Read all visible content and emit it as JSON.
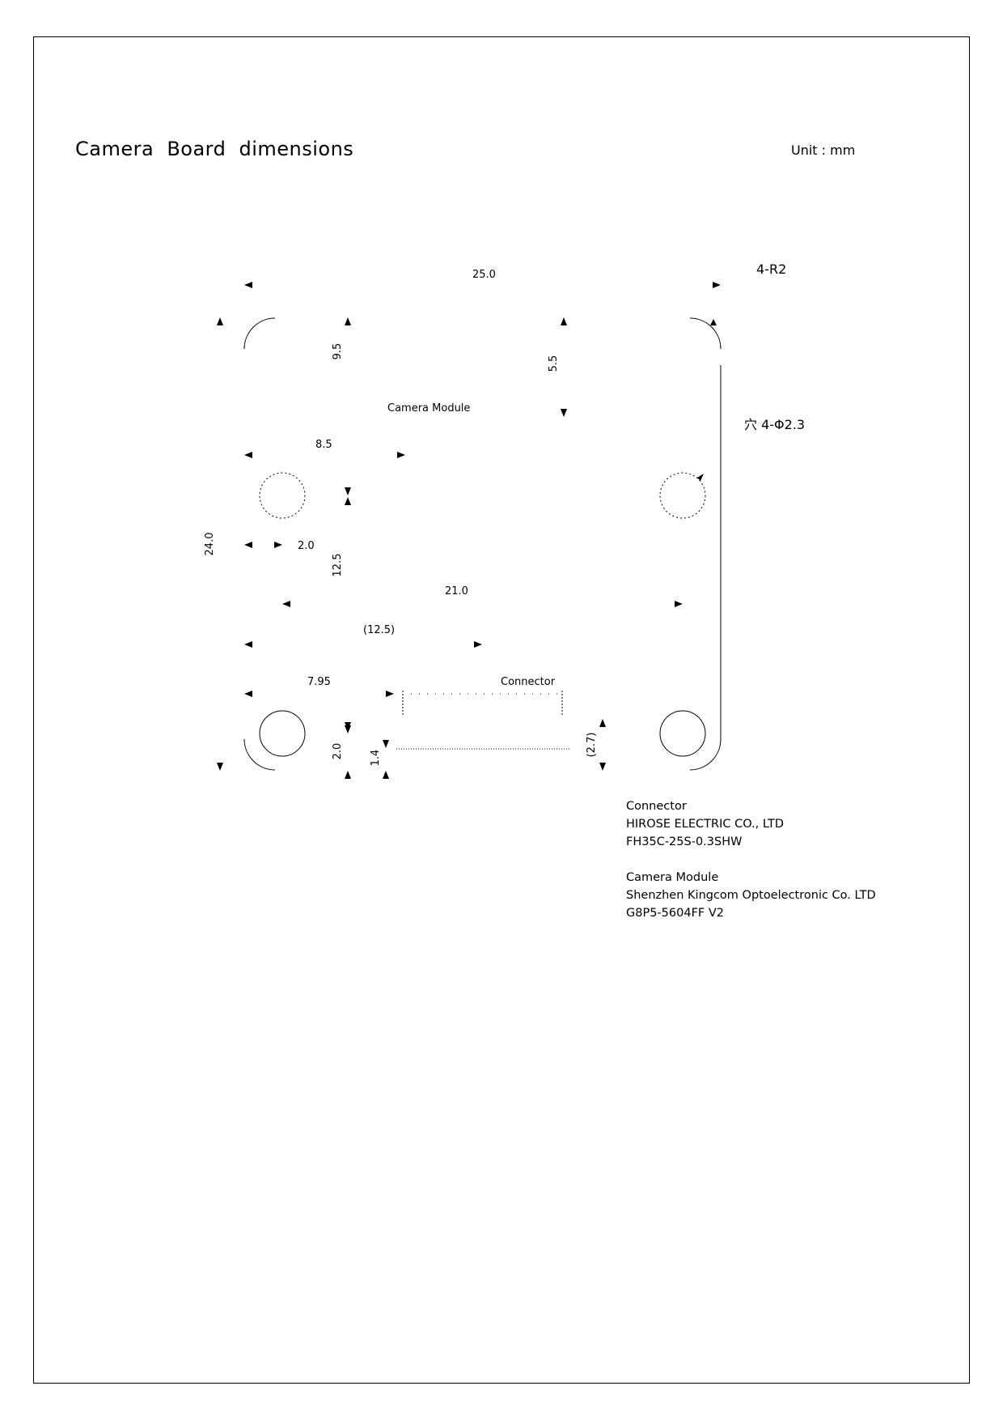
{
  "title": "Camera  Board  dimensions",
  "unit": "Unit : mm",
  "callouts": {
    "corner_radius": "4-R2",
    "holes": "穴  4-Φ2.3"
  },
  "labels": {
    "camera_module": "Camera Module",
    "connector": "Connector"
  },
  "dimensions": {
    "board_width": "25.0",
    "board_height": "24.0",
    "top_to_module": "9.5",
    "module_height": "5.5",
    "hole_x": "8.5",
    "hole_edge": "2.0",
    "hole_spacing_y": "12.5",
    "hole_spacing_x": "21.0",
    "connector_center": "(12.5)",
    "connector_offset": "7.95",
    "connector_from_bottom": "2.0",
    "connector_pitch_offset": "1.4",
    "connector_depth": "(2.7)"
  },
  "notes": [
    {
      "heading": "Connector",
      "lines": [
        "HIROSE ELECTRIC CO., LTD",
        "FH35C-25S-0.3SHW"
      ]
    },
    {
      "heading": "Camera Module",
      "lines": [
        "Shenzhen Kingcom Optoelectronic Co. LTD",
        "G8P5-5604FF V2"
      ]
    }
  ]
}
